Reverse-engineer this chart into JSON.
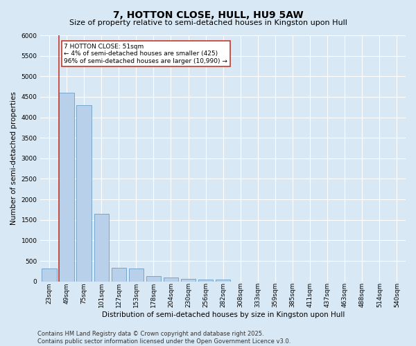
{
  "title": "7, HOTTON CLOSE, HULL, HU9 5AW",
  "subtitle": "Size of property relative to semi-detached houses in Kingston upon Hull",
  "xlabel": "Distribution of semi-detached houses by size in Kingston upon Hull",
  "ylabel": "Number of semi-detached properties",
  "categories": [
    "23sqm",
    "49sqm",
    "75sqm",
    "101sqm",
    "127sqm",
    "153sqm",
    "178sqm",
    "204sqm",
    "230sqm",
    "256sqm",
    "282sqm",
    "308sqm",
    "333sqm",
    "359sqm",
    "385sqm",
    "411sqm",
    "437sqm",
    "463sqm",
    "488sqm",
    "514sqm",
    "540sqm"
  ],
  "values": [
    310,
    4600,
    4300,
    1650,
    330,
    315,
    130,
    100,
    55,
    40,
    50,
    0,
    0,
    0,
    0,
    0,
    0,
    0,
    0,
    0,
    0
  ],
  "bar_color": "#b8d0ea",
  "bar_edge_color": "#6a9ec5",
  "vline_color": "#c0392b",
  "vline_x": 0.575,
  "annotation_line1": "7 HOTTON CLOSE: 51sqm",
  "annotation_line2": "← 4% of semi-detached houses are smaller (425)",
  "annotation_line3": "96% of semi-detached houses are larger (10,990) →",
  "annotation_box_fc": "#ffffff",
  "annotation_box_ec": "#c0392b",
  "ylim": [
    0,
    6000
  ],
  "yticks": [
    0,
    500,
    1000,
    1500,
    2000,
    2500,
    3000,
    3500,
    4000,
    4500,
    5000,
    5500,
    6000
  ],
  "bg_color": "#d8e8f4",
  "footer_text": "Contains HM Land Registry data © Crown copyright and database right 2025.\nContains public sector information licensed under the Open Government Licence v3.0.",
  "title_fontsize": 10,
  "subtitle_fontsize": 8,
  "axis_label_fontsize": 7.5,
  "tick_fontsize": 6.5,
  "annotation_fontsize": 6.5,
  "footer_fontsize": 6
}
